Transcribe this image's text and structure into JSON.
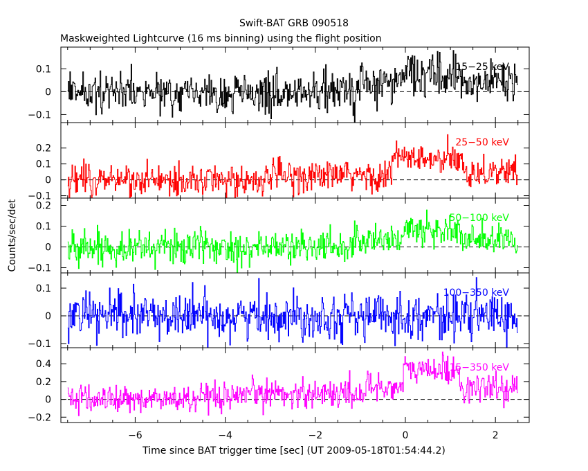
{
  "chart_data": {
    "type": "line",
    "title": "Swift-BAT GRB 090518",
    "subtitle": "Maskweighted Lightcurve (16 ms binning) using the flight position",
    "xlabel": "Time since BAT trigger time [sec] (UT 2009-05-18T01:54:44.2)",
    "ylabel": "Counts/sec/det",
    "xlim": [
      -7.65,
      2.75
    ],
    "x_ticks": [
      -6,
      -4,
      -2,
      0,
      2
    ],
    "x_tick_labels": [
      "−6",
      "−4",
      "−2",
      "0",
      "2"
    ],
    "bin_seconds": 0.016,
    "x_start": -7.5,
    "x_end": 2.5,
    "panels": [
      {
        "band": "15−25 keV",
        "color": "#000000",
        "ylim": [
          -0.135,
          0.195
        ],
        "y_ticks": [
          -0.1,
          0,
          0.1
        ],
        "y_tick_labels": [
          "−0.1",
          "0",
          "0.1"
        ],
        "noise_sigma": 0.05,
        "burst": [
          {
            "t0": -1.0,
            "t1": -0.05,
            "level": 0.035
          },
          {
            "t0": -0.05,
            "t1": 1.2,
            "level": 0.075
          },
          {
            "t0": 1.2,
            "t1": 2.5,
            "level": 0.045
          }
        ]
      },
      {
        "band": "25−50 keV",
        "color": "#ff0000",
        "ylim": [
          -0.115,
          0.36
        ],
        "y_ticks": [
          -0.1,
          0,
          0.1,
          0.2
        ],
        "y_tick_labels": [
          "−0.1",
          "0",
          "0.1",
          "0.2"
        ],
        "noise_sigma": 0.055,
        "burst": [
          {
            "t0": -3.0,
            "t1": -0.3,
            "level": 0.025
          },
          {
            "t0": -0.3,
            "t1": 0.25,
            "level": 0.14
          },
          {
            "t0": 0.25,
            "t1": 1.3,
            "level": 0.12
          },
          {
            "t0": 1.3,
            "t1": 2.5,
            "level": 0.05
          }
        ]
      },
      {
        "band": "50−100 keV",
        "color": "#00ff00",
        "ylim": [
          -0.125,
          0.235
        ],
        "y_ticks": [
          -0.1,
          0,
          0.1,
          0.2
        ],
        "y_tick_labels": [
          "−0.1",
          "0",
          "0.1",
          "0.2"
        ],
        "noise_sigma": 0.045,
        "burst": [
          {
            "t0": -1.2,
            "t1": -0.1,
            "level": 0.035
          },
          {
            "t0": -0.1,
            "t1": 1.2,
            "level": 0.08
          },
          {
            "t0": 1.2,
            "t1": 2.5,
            "level": 0.03
          }
        ]
      },
      {
        "band": "100−350 keV",
        "color": "#0000ff",
        "ylim": [
          -0.115,
          0.155
        ],
        "y_ticks": [
          -0.1,
          0,
          0.1
        ],
        "y_tick_labels": [
          "−0.1",
          "0",
          "0.1"
        ],
        "noise_sigma": 0.045,
        "burst": []
      },
      {
        "band": "15−350 keV",
        "color": "#ff00ff",
        "ylim": [
          -0.26,
          0.58
        ],
        "y_ticks": [
          -0.2,
          0,
          0.2,
          0.4
        ],
        "y_tick_labels": [
          "−0.2",
          "0",
          "0.2",
          "0.4"
        ],
        "noise_sigma": 0.09,
        "burst": [
          {
            "t0": -3.5,
            "t1": -0.9,
            "level": 0.07
          },
          {
            "t0": -0.9,
            "t1": -0.05,
            "level": 0.14
          },
          {
            "t0": -0.05,
            "t1": 1.2,
            "level": 0.33
          },
          {
            "t0": 1.2,
            "t1": 2.5,
            "level": 0.12
          }
        ]
      }
    ]
  }
}
